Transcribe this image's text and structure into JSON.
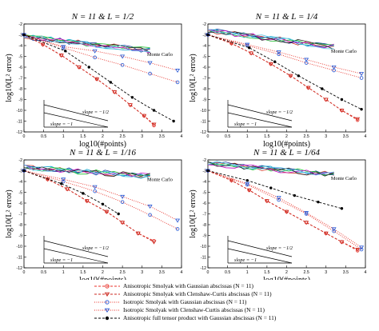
{
  "figure": {
    "colors": {
      "smolyak_gauss": "#e8322a",
      "smolyak_cc": "#cc2a20",
      "iso_gauss": "#2457d6",
      "iso_cc": "#2457d6",
      "tensor": "#000000",
      "mc_lines": [
        "#d23a2a",
        "#1a3a9a",
        "#00a0c8",
        "#20c030",
        "#c000c0",
        "#202020",
        "#60c8e8"
      ]
    },
    "legend": [
      {
        "label": "Anisotropic Smolyak with Gaussian abscissas (N = 11)",
        "style": "dashed",
        "marker": "circle",
        "color_key": "smolyak_gauss"
      },
      {
        "label": "Anisotropic Smolyak with Clenshaw-Curtis abscissas (N = 11)",
        "style": "dashed",
        "marker": "triangle-down",
        "color_key": "smolyak_cc"
      },
      {
        "label": "Isotropic Smolyak with Gaussian abscissas (N = 11)",
        "style": "dotted",
        "marker": "circle",
        "color_key": "iso_gauss"
      },
      {
        "label": "Isotropic Smolyak with Clenshaw-Curtis abscissas (N = 11)",
        "style": "dotted",
        "marker": "triangle-down",
        "color_key": "iso_cc"
      },
      {
        "label": "Anisotropic full tensor product with Gaussian abscissas (N = 11)",
        "style": "dashed",
        "marker": "dot",
        "color_key": "tensor"
      }
    ]
  },
  "chart_data": [
    {
      "type": "line",
      "title": "N = 11 & L = 1/2",
      "xlabel": "log10(#points)",
      "ylabel": "log10(L² error)",
      "xlim": [
        0,
        4
      ],
      "ylim": [
        -12,
        -2
      ],
      "x_ticks": [
        "0",
        "0.5",
        "1",
        "1.5",
        "2",
        "2.5",
        "3",
        "3.5",
        "4"
      ],
      "y_ticks": [
        "-2",
        "-3",
        "-4",
        "-5",
        "-6",
        "-7",
        "-8",
        "-9",
        "-10",
        "-11",
        "-12"
      ],
      "annotation": "Monte Carlo",
      "slope_labels": [
        "slope = −1/2",
        "slope = −1"
      ],
      "series": [
        {
          "legend_index": 0,
          "x": [
            0,
            0.48,
            0.95,
            1.4,
            1.85,
            2.3,
            2.7,
            3.05,
            3.3
          ],
          "y": [
            -3.0,
            -3.9,
            -4.9,
            -6.0,
            -7.1,
            -8.3,
            -9.5,
            -10.5,
            -11.4
          ]
        },
        {
          "legend_index": 1,
          "x": [
            0,
            0.48,
            0.95,
            1.4,
            1.85,
            2.3,
            2.7,
            3.05,
            3.3
          ],
          "y": [
            -3.0,
            -3.9,
            -4.9,
            -6.0,
            -7.1,
            -8.3,
            -9.5,
            -10.5,
            -11.3
          ]
        },
        {
          "legend_index": 2,
          "x": [
            0,
            1.0,
            1.8,
            2.5,
            3.2,
            3.9
          ],
          "y": [
            -3.0,
            -4.2,
            -5.1,
            -5.8,
            -6.6,
            -7.4
          ]
        },
        {
          "legend_index": 3,
          "x": [
            0,
            1.0,
            1.8,
            2.5,
            3.2,
            3.9
          ],
          "y": [
            -3.0,
            -4.1,
            -4.5,
            -5.0,
            -5.6,
            -6.3
          ]
        },
        {
          "legend_index": 4,
          "x": [
            0,
            1.05,
            1.65,
            2.2,
            2.75,
            3.3,
            3.8
          ],
          "y": [
            -3.0,
            -4.5,
            -6.0,
            -7.4,
            -8.8,
            -10.0,
            -11.0
          ]
        }
      ],
      "mc_ylim": [
        -4.6,
        -3.2
      ]
    },
    {
      "type": "line",
      "title": "N = 11 & L = 1/4",
      "xlabel": "log10(#points)",
      "ylabel": "log10(L² error)",
      "xlim": [
        0,
        4
      ],
      "ylim": [
        -12,
        -2
      ],
      "x_ticks": [
        "0",
        "0.5",
        "1",
        "1.5",
        "2",
        "2.5",
        "3",
        "3.5",
        "4"
      ],
      "y_ticks": [
        "-2",
        "-3",
        "-4",
        "-5",
        "-6",
        "-7",
        "-8",
        "-9",
        "-10",
        "-11",
        "-12"
      ],
      "annotation": "Monte Carlo",
      "slope_labels": [
        "slope = −1/2",
        "slope = −1"
      ],
      "series": [
        {
          "legend_index": 0,
          "x": [
            0,
            0.6,
            1.1,
            1.6,
            2.1,
            2.55,
            3.0,
            3.4,
            3.8
          ],
          "y": [
            -3.0,
            -3.8,
            -4.7,
            -5.7,
            -6.8,
            -7.9,
            -9.0,
            -10.0,
            -10.9
          ]
        },
        {
          "legend_index": 1,
          "x": [
            0,
            0.6,
            1.1,
            1.6,
            2.1,
            2.55,
            3.0,
            3.4,
            3.8
          ],
          "y": [
            -3.0,
            -3.8,
            -4.7,
            -5.7,
            -6.8,
            -7.9,
            -9.0,
            -10.0,
            -10.8
          ]
        },
        {
          "legend_index": 2,
          "x": [
            0,
            1.0,
            1.8,
            2.5,
            3.2,
            3.9
          ],
          "y": [
            -3.0,
            -4.0,
            -4.8,
            -5.6,
            -6.3,
            -7.0
          ]
        },
        {
          "legend_index": 3,
          "x": [
            0,
            1.0,
            1.8,
            2.5,
            3.2,
            3.9
          ],
          "y": [
            -3.0,
            -3.9,
            -4.6,
            -5.3,
            -6.0,
            -6.6
          ]
        },
        {
          "legend_index": 4,
          "x": [
            0,
            1.05,
            1.7,
            2.3,
            2.9,
            3.4,
            3.9
          ],
          "y": [
            -3.0,
            -4.2,
            -5.5,
            -6.8,
            -8.0,
            -9.0,
            -9.9
          ]
        }
      ],
      "mc_ylim": [
        -4.3,
        -2.6
      ]
    },
    {
      "type": "line",
      "title": "N = 11 & L = 1/16",
      "xlabel": "log10(#points)",
      "ylabel": "log10(L² error)",
      "xlim": [
        0,
        4
      ],
      "ylim": [
        -12,
        -2
      ],
      "x_ticks": [
        "0",
        "0.5",
        "1",
        "1.5",
        "2",
        "2.5",
        "3",
        "3.5",
        "4"
      ],
      "y_ticks": [
        "-2",
        "-3",
        "-4",
        "-5",
        "-6",
        "-7",
        "-8",
        "-9",
        "-10",
        "-11",
        "-12"
      ],
      "annotation": "Monte Carlo",
      "slope_labels": [
        "slope = −1/2",
        "slope = −1"
      ],
      "series": [
        {
          "legend_index": 0,
          "x": [
            0,
            0.6,
            1.1,
            1.6,
            2.1,
            2.5,
            2.9,
            3.3
          ],
          "y": [
            -3.0,
            -3.8,
            -4.7,
            -5.8,
            -6.8,
            -7.8,
            -8.8,
            -9.5
          ]
        },
        {
          "legend_index": 1,
          "x": [
            0,
            0.6,
            1.1,
            1.6,
            2.1,
            2.5,
            2.9,
            3.3
          ],
          "y": [
            -3.0,
            -3.8,
            -4.7,
            -5.8,
            -6.8,
            -7.8,
            -8.8,
            -9.6
          ]
        },
        {
          "legend_index": 2,
          "x": [
            0,
            1.0,
            1.8,
            2.5,
            3.2,
            3.9
          ],
          "y": [
            -3.0,
            -4.0,
            -4.9,
            -5.9,
            -7.1,
            -8.4
          ]
        },
        {
          "legend_index": 3,
          "x": [
            0,
            1.0,
            1.8,
            2.5,
            3.2,
            3.9
          ],
          "y": [
            -3.0,
            -3.8,
            -4.5,
            -5.4,
            -6.3,
            -7.6
          ]
        },
        {
          "legend_index": 4,
          "x": [
            0,
            0.95,
            1.5,
            2.0,
            2.4
          ],
          "y": [
            -3.0,
            -4.2,
            -5.1,
            -6.1,
            -7.0
          ]
        }
      ],
      "mc_ylim": [
        -3.6,
        -2.7
      ]
    },
    {
      "type": "line",
      "title": "N = 11 & L = 1/64",
      "xlabel": "log10(#points)",
      "ylabel": "log10(L² error)",
      "xlim": [
        0,
        4
      ],
      "ylim": [
        -12,
        -2
      ],
      "x_ticks": [
        "0",
        "0.5",
        "1",
        "1.5",
        "2",
        "2.5",
        "3",
        "3.5",
        "4"
      ],
      "y_ticks": [
        "-2",
        "-3",
        "-4",
        "-5",
        "-6",
        "-7",
        "-8",
        "-9",
        "-10",
        "-11",
        "-12"
      ],
      "annotation": "Monte Carlo",
      "slope_labels": [
        "slope = −1/2",
        "slope = −1"
      ],
      "series": [
        {
          "legend_index": 0,
          "x": [
            0,
            0.6,
            1.05,
            1.5,
            2.0,
            2.5,
            3.0,
            3.4,
            3.8
          ],
          "y": [
            -3.0,
            -3.9,
            -4.8,
            -5.8,
            -6.8,
            -7.8,
            -8.8,
            -9.6,
            -10.4
          ]
        },
        {
          "legend_index": 1,
          "x": [
            0,
            0.6,
            1.05,
            1.5,
            2.0,
            2.5,
            3.0,
            3.4,
            3.8
          ],
          "y": [
            -3.0,
            -3.9,
            -4.8,
            -5.8,
            -6.8,
            -7.8,
            -8.8,
            -9.6,
            -10.3
          ]
        },
        {
          "legend_index": 2,
          "x": [
            0,
            1.0,
            1.8,
            2.5,
            3.2,
            3.9
          ],
          "y": [
            -3.0,
            -4.3,
            -5.7,
            -7.0,
            -8.6,
            -10.3
          ]
        },
        {
          "legend_index": 3,
          "x": [
            0,
            1.0,
            1.8,
            2.5,
            3.2,
            3.9
          ],
          "y": [
            -3.0,
            -4.2,
            -5.5,
            -6.9,
            -8.4,
            -10.1
          ]
        },
        {
          "legend_index": 4,
          "x": [
            0,
            1.0,
            1.6,
            2.2,
            2.8,
            3.4
          ],
          "y": [
            -3.0,
            -3.9,
            -4.6,
            -5.3,
            -5.9,
            -6.5
          ]
        }
      ],
      "mc_ylim": [
        -3.5,
        -2.3
      ]
    }
  ]
}
